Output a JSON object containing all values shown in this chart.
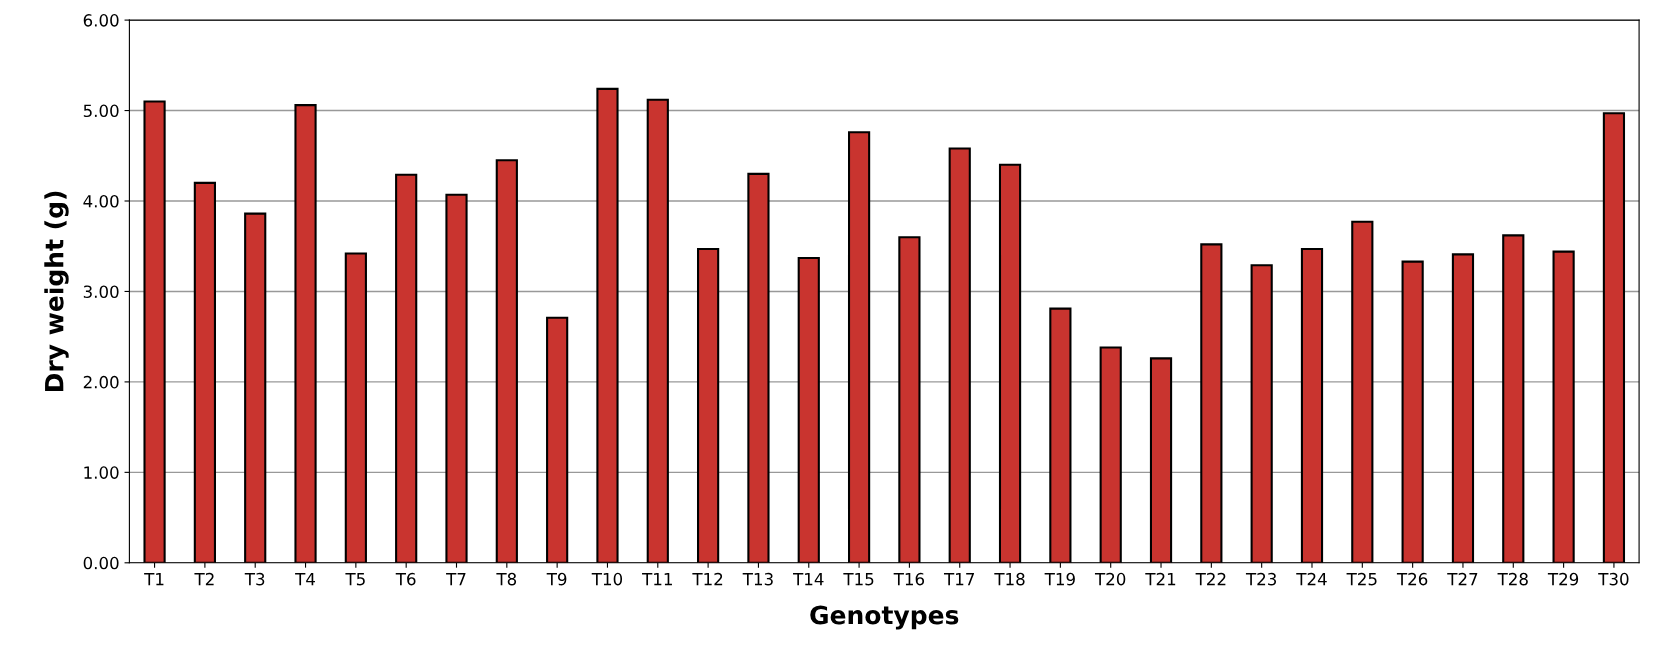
{
  "chart_data": {
    "type": "bar",
    "xlabel": "Genotypes",
    "ylabel": "Dry weight (g)",
    "categories": [
      "T1",
      "T2",
      "T3",
      "T4",
      "T5",
      "T6",
      "T7",
      "T8",
      "T9",
      "T10",
      "T11",
      "T12",
      "T13",
      "T14",
      "T15",
      "T16",
      "T17",
      "T18",
      "T19",
      "T20",
      "T21",
      "T22",
      "T23",
      "T24",
      "T25",
      "T26",
      "T27",
      "T28",
      "T29",
      "T30"
    ],
    "values": [
      5.1,
      4.2,
      3.86,
      5.06,
      3.42,
      4.29,
      4.07,
      4.45,
      2.71,
      5.24,
      5.12,
      3.47,
      4.3,
      3.37,
      4.76,
      3.6,
      4.58,
      4.4,
      2.81,
      2.38,
      2.26,
      3.52,
      3.29,
      3.47,
      3.77,
      3.33,
      3.41,
      3.62,
      3.44,
      4.97
    ],
    "color": "#c9342f",
    "ylim": [
      0,
      6
    ],
    "yticks": [
      {
        "value": 0,
        "label": "0.00"
      },
      {
        "value": 1,
        "label": "1.00"
      },
      {
        "value": 2,
        "label": "2.00"
      },
      {
        "value": 3,
        "label": "3.00"
      },
      {
        "value": 4,
        "label": "4.00"
      },
      {
        "value": 5,
        "label": "5.00"
      },
      {
        "value": 6,
        "label": "6.00"
      }
    ],
    "grid": "y"
  }
}
